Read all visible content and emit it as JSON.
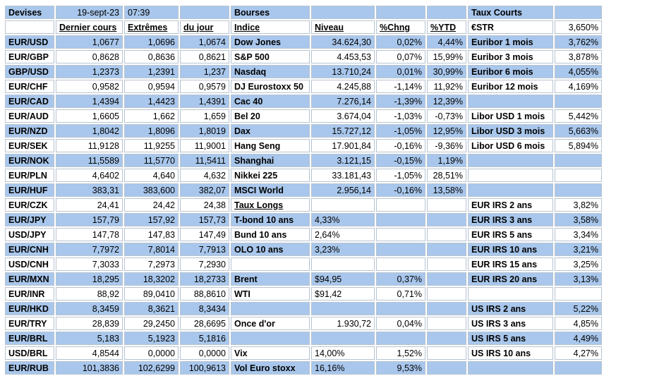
{
  "header": {
    "devises": "Devises",
    "date": "19-sept-23",
    "time": "07:39",
    "bourses": "Bourses",
    "taux_courts": "Taux Courts",
    "estr_label": "€STR",
    "estr_value": "3,650%"
  },
  "fx_headers": [
    "Dernier cours",
    "Extrêmes",
    "du jour"
  ],
  "idx_headers": [
    "Indice",
    "Niveau",
    "%Chng",
    "%YTD"
  ],
  "fx": [
    {
      "pair": "EUR/USD",
      "last": "1,0677",
      "high": "1,0696",
      "low": "1,0674"
    },
    {
      "pair": "EUR/GBP",
      "last": "0,8628",
      "high": "0,8636",
      "low": "0,8621"
    },
    {
      "pair": "GBP/USD",
      "last": "1,2373",
      "high": "1,2391",
      "low": "1,237"
    },
    {
      "pair": "EUR/CHF",
      "last": "0,9582",
      "high": "0,9594",
      "low": "0,9579"
    },
    {
      "pair": "EUR/CAD",
      "last": "1,4394",
      "high": "1,4423",
      "low": "1,4391"
    },
    {
      "pair": "EUR/AUD",
      "last": "1,6605",
      "high": "1,662",
      "low": "1,659"
    },
    {
      "pair": "EUR/NZD",
      "last": "1,8042",
      "high": "1,8096",
      "low": "1,8019"
    },
    {
      "pair": "EUR/SEK",
      "last": "11,9128",
      "high": "11,9255",
      "low": "11,9001"
    },
    {
      "pair": "EUR/NOK",
      "last": "11,5589",
      "high": "11,5770",
      "low": "11,5411"
    },
    {
      "pair": "EUR/PLN",
      "last": "4,6402",
      "high": "4,640",
      "low": "4,632"
    },
    {
      "pair": "EUR/HUF",
      "last": "383,31",
      "high": "383,600",
      "low": "382,07"
    },
    {
      "pair": "EUR/CZK",
      "last": "24,41",
      "high": "24,42",
      "low": "24,38"
    },
    {
      "pair": "EUR/JPY",
      "last": "157,79",
      "high": "157,92",
      "low": "157,73"
    },
    {
      "pair": "USD/JPY",
      "last": "147,78",
      "high": "147,83",
      "low": "147,49"
    },
    {
      "pair": "EUR/CNH",
      "last": "7,7972",
      "high": "7,8014",
      "low": "7,7913"
    },
    {
      "pair": "USD/CNH",
      "last": "7,3033",
      "high": "7,2973",
      "low": "7,2930"
    },
    {
      "pair": "EUR/MXN",
      "last": "18,295",
      "high": "18,3202",
      "low": "18,2733"
    },
    {
      "pair": "EUR/INR",
      "last": "88,92",
      "high": "89,0410",
      "low": "88,8610"
    },
    {
      "pair": "EUR/HKD",
      "last": "8,3459",
      "high": "8,3621",
      "low": "8,3434"
    },
    {
      "pair": "EUR/TRY",
      "last": "28,839",
      "high": "29,2450",
      "low": "28,6695"
    },
    {
      "pair": "EUR/BRL",
      "last": "5,183",
      "high": "5,1923",
      "low": "5,1816"
    },
    {
      "pair": "USD/BRL",
      "last": "4,8544",
      "high": "0,0000",
      "low": "0,0000"
    },
    {
      "pair": "EUR/RUB",
      "last": "101,3836",
      "high": "102,6299",
      "low": "100,9613"
    }
  ],
  "mid": [
    {
      "name": "Dow Jones",
      "level": "34.624,30",
      "chg": "0,02%",
      "ytd": "4,44%"
    },
    {
      "name": "S&P 500",
      "level": "4.453,53",
      "chg": "0,07%",
      "ytd": "15,99%"
    },
    {
      "name": "Nasdaq",
      "level": "13.710,24",
      "chg": "0,01%",
      "ytd": "30,99%"
    },
    {
      "name": "DJ Eurostoxx 50",
      "level": "4.245,88",
      "chg": "-1,14%",
      "ytd": "11,92%"
    },
    {
      "name": "Cac 40",
      "level": "7.276,14",
      "chg": "-1,39%",
      "ytd": "12,39%"
    },
    {
      "name": "Bel 20",
      "level": "3.674,04",
      "chg": "-1,03%",
      "ytd": "-0,73%"
    },
    {
      "name": "Dax",
      "level": "15.727,12",
      "chg": "-1,05%",
      "ytd": "12,95%"
    },
    {
      "name": "Hang Seng",
      "level": "17.901,84",
      "chg": "-0,16%",
      "ytd": "-9,36%"
    },
    {
      "name": "Shanghai",
      "level": "3.121,15",
      "chg": "-0,15%",
      "ytd": "1,19%"
    },
    {
      "name": "Nikkei 225",
      "level": "33.181,43",
      "chg": "-1,05%",
      "ytd": "28,51%"
    },
    {
      "name": "MSCI World",
      "level": "2.956,14",
      "chg": "-0,16%",
      "ytd": "13,58%"
    },
    {
      "name": "Taux Longs",
      "level": "",
      "chg": "",
      "ytd": ""
    },
    {
      "name": "T-bond 10 ans",
      "level": "4,33%",
      "chg": "",
      "ytd": ""
    },
    {
      "name": "Bund 10 ans",
      "level": "2,64%",
      "chg": "",
      "ytd": ""
    },
    {
      "name": "OLO 10 ans",
      "level": "3,23%",
      "chg": "",
      "ytd": ""
    },
    {
      "name": "",
      "level": "",
      "chg": "",
      "ytd": ""
    },
    {
      "name": "Brent",
      "level": "$94,95",
      "chg": "0,37%",
      "ytd": ""
    },
    {
      "name": "WTI",
      "level": "$91,42",
      "chg": "0,71%",
      "ytd": ""
    },
    {
      "name": "",
      "level": "",
      "chg": "",
      "ytd": ""
    },
    {
      "name": "Once d'or",
      "level": "1.930,72",
      "chg": "0,04%",
      "ytd": ""
    },
    {
      "name": "",
      "level": "",
      "chg": "",
      "ytd": ""
    },
    {
      "name": "Vix",
      "level": "14,00%",
      "chg": "1,52%",
      "ytd": ""
    },
    {
      "name": "Vol Euro stoxx",
      "level": "16,16%",
      "chg": "9,53%",
      "ytd": ""
    }
  ],
  "right": [
    {
      "label": "Euribor 1 mois",
      "value": "3,762%"
    },
    {
      "label": "Euribor 3 mois",
      "value": "3,878%"
    },
    {
      "label": "Euribor 6 mois",
      "value": "4,055%"
    },
    {
      "label": "Euribor 12 mois",
      "value": "4,169%"
    },
    {
      "label": "",
      "value": ""
    },
    {
      "label": "Libor USD 1 mois",
      "value": "5,442%"
    },
    {
      "label": "Libor USD 3 mois",
      "value": "5,663%"
    },
    {
      "label": "Libor USD 6 mois",
      "value": "5,894%"
    },
    {
      "label": "",
      "value": ""
    },
    {
      "label": "",
      "value": ""
    },
    {
      "label": "",
      "value": ""
    },
    {
      "label": "EUR IRS 2 ans",
      "value": "3,82%"
    },
    {
      "label": "EUR IRS 3 ans",
      "value": "3,58%"
    },
    {
      "label": "EUR IRS 5 ans",
      "value": "3,34%"
    },
    {
      "label": "EUR IRS 10 ans",
      "value": "3,21%"
    },
    {
      "label": "EUR IRS 15 ans",
      "value": "3,25%"
    },
    {
      "label": "EUR IRS 20 ans",
      "value": "3,13%"
    },
    {
      "label": "",
      "value": ""
    },
    {
      "label": "US IRS 2 ans",
      "value": "5,22%"
    },
    {
      "label": "US IRS 3 ans",
      "value": "4,85%"
    },
    {
      "label": "US IRS 5 ans",
      "value": "4,49%"
    },
    {
      "label": "US IRS 10 ans",
      "value": "4,27%"
    },
    {
      "label": "",
      "value": ""
    }
  ],
  "colors": {
    "accent": "#a9c7ec",
    "white": "#ffffff"
  }
}
